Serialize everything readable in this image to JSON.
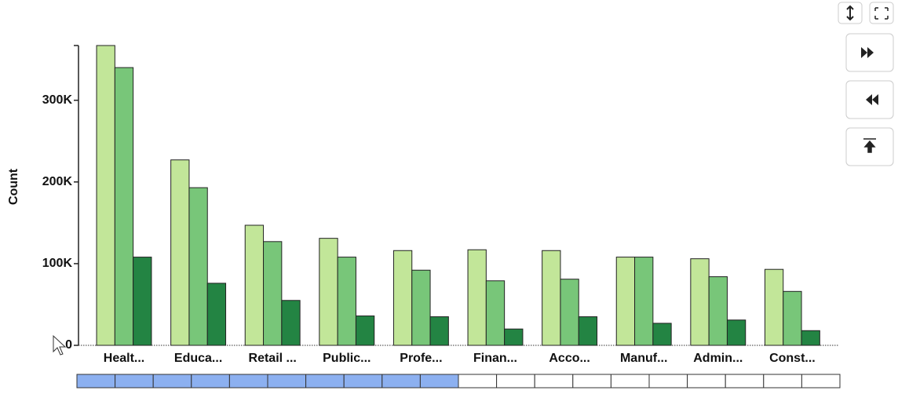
{
  "chart_data": {
    "type": "bar",
    "y_label": "Count",
    "categories": [
      "Healt...",
      "Educa...",
      "Retail ...",
      "Public...",
      "Profe...",
      "Finan...",
      "Acco...",
      "Manuf...",
      "Admin...",
      "Const..."
    ],
    "series": [
      {
        "color": "#c2e699",
        "values": [
          367000,
          227000,
          147000,
          131000,
          116000,
          117000,
          116000,
          108000,
          106000,
          93000
        ]
      },
      {
        "color": "#78c679",
        "values": [
          340000,
          193000,
          127000,
          108000,
          92000,
          79000,
          81000,
          108000,
          84000,
          66000
        ]
      },
      {
        "color": "#238443",
        "values": [
          108000,
          76000,
          55000,
          36000,
          35000,
          20000,
          35000,
          27000,
          31000,
          18000
        ]
      }
    ],
    "ylim": [
      0,
      367000
    ],
    "yticks": [
      0,
      {
        "value": 100000,
        "label": "100K"
      },
      {
        "value": 200000,
        "label": "200K"
      },
      {
        "value": 300000,
        "label": "300K"
      }
    ]
  }
}
